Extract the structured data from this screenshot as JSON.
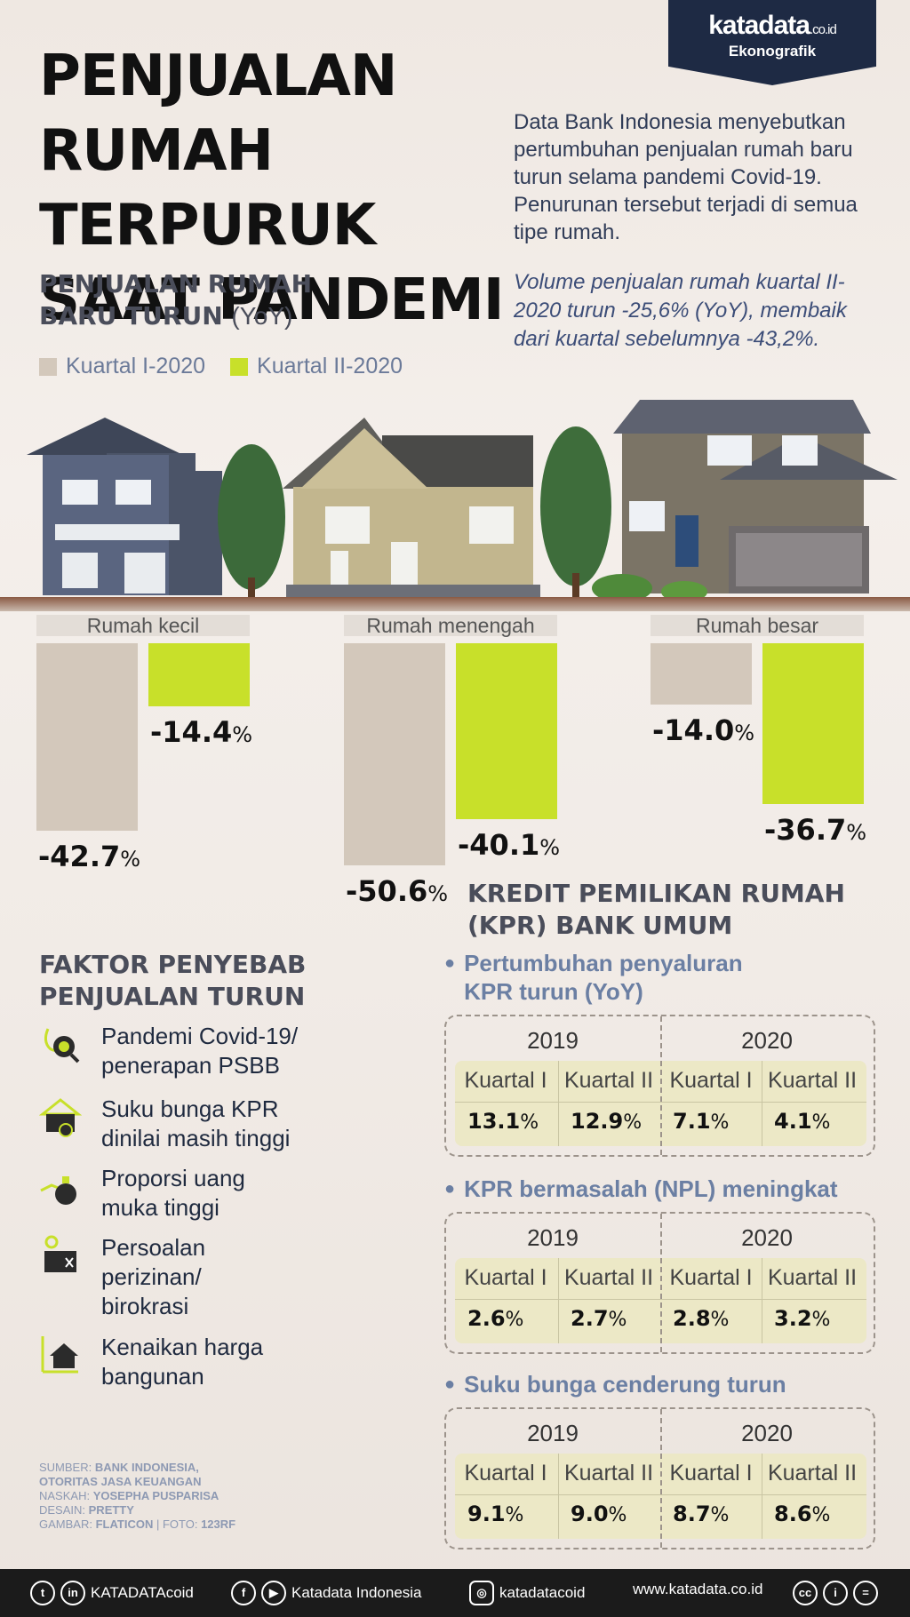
{
  "brand": {
    "logo": "katadata",
    "logo_suffix": ".co.id",
    "sub": "Ekonografik"
  },
  "title": {
    "line1": "PENJUALAN RUMAH",
    "line2": "TERPURUK",
    "line3": "SAAT PANDEMI"
  },
  "intro": "Data Bank Indonesia menyebutkan pertumbuhan penjualan rumah baru turun selama pandemi Covid-19. Penurunan tersebut terjadi di semua tipe rumah.",
  "highlight": "Volume penjualan rumah kuartal II-2020 turun -25,6% (YoY), membaik dari kuartal sebelumnya -43,2%.",
  "colors": {
    "q1": "#d3c8bb",
    "q2": "#c8e02a",
    "navy": "#1e2a44"
  },
  "chart_data": {
    "type": "bar",
    "subtitle_line1": "PENJUALAN RUMAH",
    "subtitle_line2": "BARU TURUN",
    "subtitle_unit": "(YoY)",
    "categories": [
      "Rumah kecil",
      "Rumah menengah",
      "Rumah besar"
    ],
    "series": [
      {
        "name": "Kuartal I-2020",
        "values": [
          -42.7,
          -50.6,
          -14.0
        ],
        "labels": [
          "-42.7",
          "-50.6",
          "-14.0"
        ]
      },
      {
        "name": "Kuartal II-2020",
        "values": [
          -14.4,
          -40.1,
          -36.7
        ],
        "labels": [
          "-14.4",
          "-40.1",
          "-36.7"
        ]
      }
    ],
    "unit": "%",
    "ylim": [
      -50.6,
      0
    ]
  },
  "factors": {
    "heading_line1": "FAKTOR PENYEBAB",
    "heading_line2": "PENJUALAN TURUN",
    "items": [
      {
        "line1": "Pandemi Covid-19/",
        "line2": "penerapan PSBB",
        "line3": "",
        "icon": "virus-magnifier-icon"
      },
      {
        "line1": "Suku bunga KPR",
        "line2": "dinilai masih tinggi",
        "line3": "",
        "icon": "house-percent-icon"
      },
      {
        "line1": "Proporsi uang",
        "line2": "muka tinggi",
        "line3": "",
        "icon": "money-bag-hand-icon"
      },
      {
        "line1": "Persoalan",
        "line2": "perizinan/",
        "line3": "birokrasi",
        "icon": "document-stamp-icon"
      },
      {
        "line1": "Kenaikan harga",
        "line2": "bangunan",
        "line3": "",
        "icon": "house-price-up-icon"
      }
    ]
  },
  "kpr": {
    "heading_line1": "KREDIT PEMILIKAN RUMAH",
    "heading_line2": "(KPR) BANK UMUM",
    "tables": [
      {
        "bullet_line1": "Pertumbuhan penyaluran",
        "bullet_line2": "KPR turun (YoY)",
        "years": [
          "2019",
          "2020"
        ],
        "quarters": [
          "Kuartal I",
          "Kuartal II",
          "Kuartal I",
          "Kuartal II"
        ],
        "values": [
          "13.1",
          "12.9",
          "7.1",
          "4.1"
        ]
      },
      {
        "bullet_line1": "KPR bermasalah (NPL) meningkat",
        "bullet_line2": "",
        "years": [
          "2019",
          "2020"
        ],
        "quarters": [
          "Kuartal I",
          "Kuartal II",
          "Kuartal I",
          "Kuartal II"
        ],
        "values": [
          "2.6",
          "2.7",
          "2.8",
          "3.2"
        ]
      },
      {
        "bullet_line1": "Suku bunga cenderung turun",
        "bullet_line2": "",
        "years": [
          "2019",
          "2020"
        ],
        "quarters": [
          "Kuartal I",
          "Kuartal II",
          "Kuartal I",
          "Kuartal II"
        ],
        "values": [
          "9.1",
          "9.0",
          "8.7",
          "8.6"
        ]
      }
    ]
  },
  "credits": {
    "sumber_label": "SUMBER:",
    "sumber_value1": "BANK INDONESIA,",
    "sumber_value2": "OTORITAS JASA KEUANGAN",
    "naskah_label": "NASKAH:",
    "naskah_value": "YOSEPHA PUSPARISA",
    "desain_label": "DESAIN:",
    "desain_value": "PRETTY",
    "gambar_label": "GAMBAR:",
    "gambar_value": "FLATICON",
    "foto_label": "| FOTO:",
    "foto_value": "123RF"
  },
  "footer": {
    "handle1": "KATADATAcoid",
    "handle2": "Katadata Indonesia",
    "handle3": "katadatacoid",
    "website": "www.katadata.co.id"
  }
}
